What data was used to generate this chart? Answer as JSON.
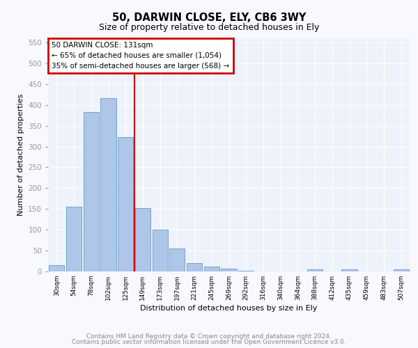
{
  "title1": "50, DARWIN CLOSE, ELY, CB6 3WY",
  "title2": "Size of property relative to detached houses in Ely",
  "xlabel": "Distribution of detached houses by size in Ely",
  "ylabel": "Number of detached properties",
  "bar_labels": [
    "30sqm",
    "54sqm",
    "78sqm",
    "102sqm",
    "125sqm",
    "149sqm",
    "173sqm",
    "197sqm",
    "221sqm",
    "245sqm",
    "269sqm",
    "292sqm",
    "316sqm",
    "340sqm",
    "364sqm",
    "388sqm",
    "412sqm",
    "435sqm",
    "459sqm",
    "483sqm",
    "507sqm"
  ],
  "bar_values": [
    15,
    155,
    382,
    417,
    322,
    152,
    100,
    55,
    20,
    12,
    6,
    2,
    0,
    0,
    0,
    5,
    0,
    5,
    0,
    0,
    5
  ],
  "bar_color": "#aec6e8",
  "bar_edge_color": "#6699cc",
  "vline_x": 4.5,
  "vline_color": "#cc0000",
  "annotation_title": "50 DARWIN CLOSE: 131sqm",
  "annotation_line1": "← 65% of detached houses are smaller (1,054)",
  "annotation_line2": "35% of semi-detached houses are larger (568) →",
  "box_color": "#cc0000",
  "ylim": [
    0,
    560
  ],
  "yticks": [
    0,
    50,
    100,
    150,
    200,
    250,
    300,
    350,
    400,
    450,
    500,
    550
  ],
  "footer1": "Contains HM Land Registry data © Crown copyright and database right 2024.",
  "footer2": "Contains public sector information licensed under the Open Government Licence v3.0.",
  "fig_bg_color": "#f8f8ff",
  "plot_bg_color": "#eef2fa",
  "grid_color": "#ffffff"
}
